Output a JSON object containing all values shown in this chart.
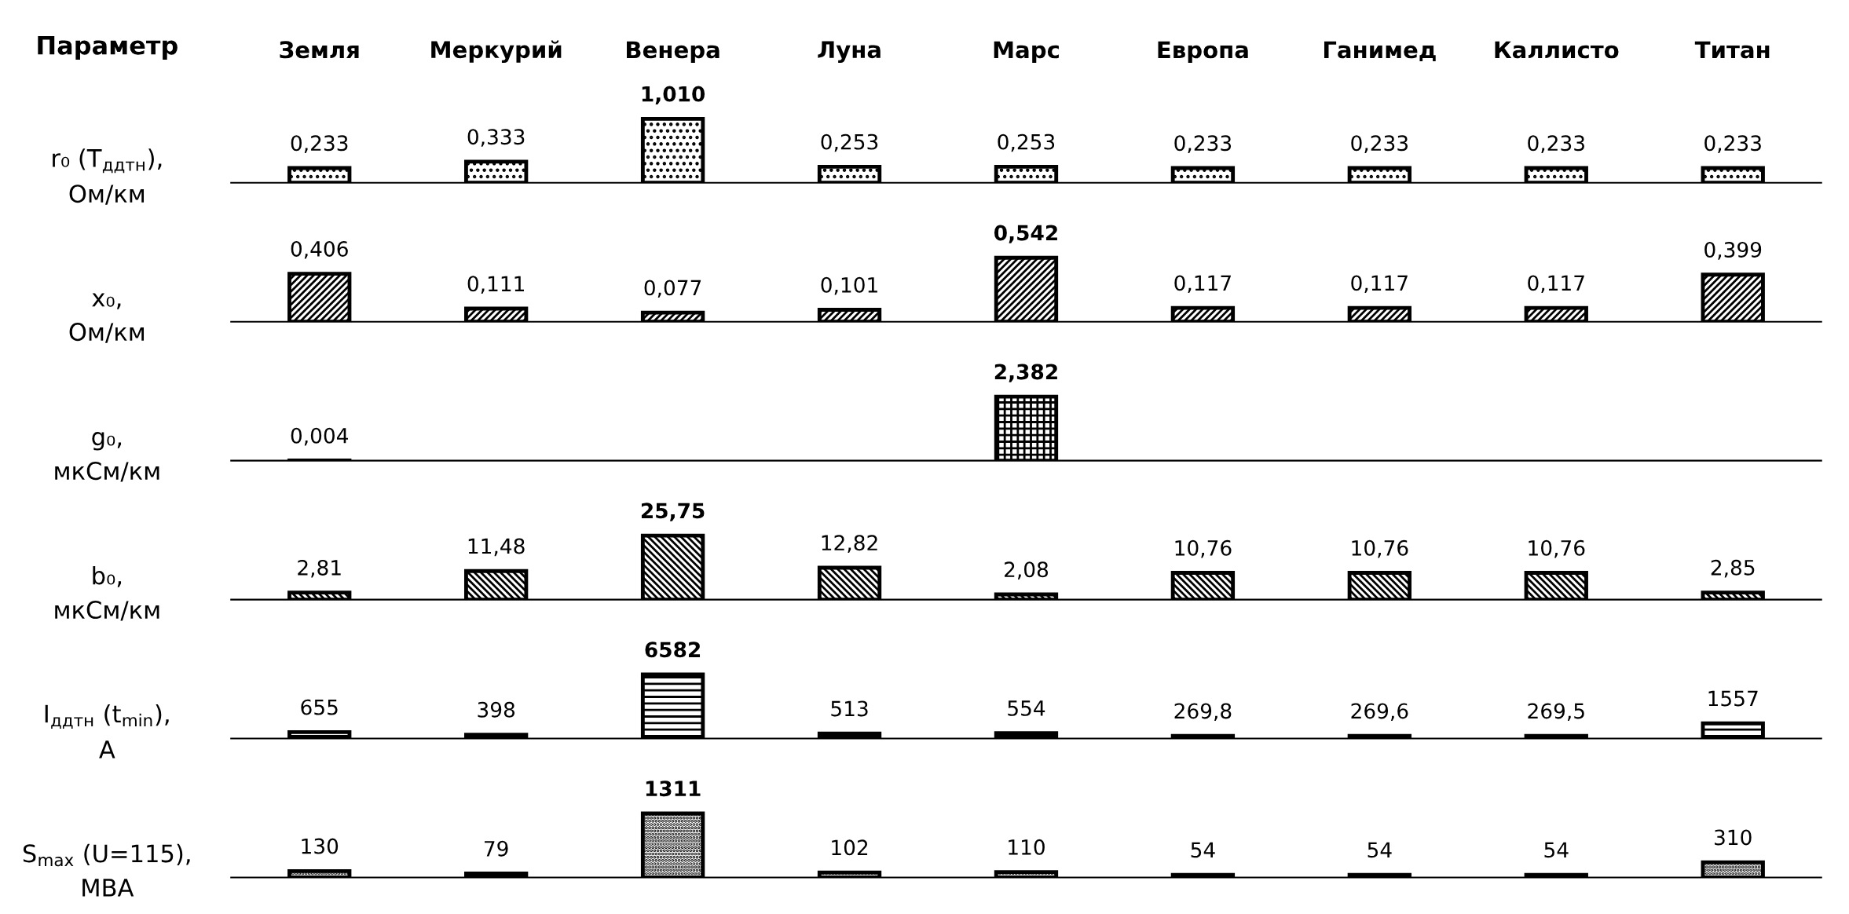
{
  "chart_data": [
    {
      "type": "bar",
      "ylabel": "r₀ (T$_{ддтн}$),\nОм/км",
      "annotations": [
        "Параметр"
      ],
      "tick_labels": "x",
      "categories": [
        "Земля",
        "Меркурий",
        "Венера",
        "Луна",
        "Марс",
        "Европа",
        "Ганимед",
        "Каллисто",
        "Титан"
      ],
      "series": [
        {
          "color": "#000000",
          "values": [
            0.233,
            0.333,
            1.01,
            0.253,
            0.253,
            0.233,
            0.233,
            0.233,
            0.233
          ],
          "value_labels": [
            "0,233",
            "0,333",
            "1,010",
            "0,253",
            "0,253",
            "0,233",
            "0,233",
            "0,233",
            "0,233"
          ]
        }
      ]
    },
    {
      "type": "bar",
      "ylabel": "x₀,\nОм/км",
      "tick_labels": false,
      "categories": [
        null,
        null,
        null,
        null,
        null,
        null,
        null,
        null,
        null
      ],
      "series": [
        {
          "color": "#000000",
          "values": [
            0.406,
            0.111,
            0.077,
            0.101,
            0.542,
            0.117,
            0.117,
            0.117,
            0.399
          ],
          "value_labels": [
            "0,406",
            "0,111",
            "0,077",
            "0,101",
            "0,542",
            "0,117",
            "0,117",
            "0,117",
            "0,399"
          ]
        }
      ]
    },
    {
      "type": "bar",
      "ylabel": "g₀,\nмкСм/км",
      "tick_labels": false,
      "categories": [
        null,
        null,
        null,
        null,
        null,
        null,
        null,
        null,
        null
      ],
      "series": [
        {
          "color": "#000000",
          "values": [
            0.004,
            null,
            null,
            null,
            2.382,
            null,
            null,
            null,
            null
          ],
          "value_labels": [
            "0,004",
            null,
            null,
            null,
            "2,382",
            null,
            null,
            null,
            null
          ]
        }
      ]
    },
    {
      "type": "bar",
      "ylabel": "b₀,\nмкСм/км",
      "tick_labels": false,
      "categories": [
        null,
        null,
        null,
        null,
        null,
        null,
        null,
        null,
        null
      ],
      "series": [
        {
          "color": "#000000",
          "values": [
            2.81,
            11.48,
            25.75,
            12.82,
            2.08,
            10.76,
            10.76,
            10.76,
            2.85
          ],
          "value_labels": [
            "2,81",
            "11,48",
            "25,75",
            "12,82",
            "2,08",
            "10,76",
            "10,76",
            "10,76",
            "2,85"
          ]
        }
      ]
    },
    {
      "type": "bar",
      "ylabel": "I$_{ддтн}$ (t$_{min}$),\nА",
      "tick_labels": false,
      "categories": [
        null,
        null,
        null,
        null,
        null,
        null,
        null,
        null,
        null
      ],
      "series": [
        {
          "color": "#000000",
          "values": [
            655,
            398,
            6582,
            513,
            554,
            269.8,
            269.6,
            269.5,
            1557
          ],
          "value_labels": [
            "655",
            "398",
            "6582",
            "513",
            "554",
            "269,8",
            "269,6",
            "269,5",
            "1557"
          ]
        }
      ]
    },
    {
      "type": "bar",
      "ylabel": "S$_{max}$ (U=115),\nМВА",
      "tick_labels": false,
      "categories": [
        null,
        null,
        null,
        null,
        null,
        null,
        null,
        null,
        null
      ],
      "series": [
        {
          "color": "#000000",
          "values": [
            130,
            79,
            1311,
            102,
            110,
            54,
            54,
            54,
            310
          ],
          "value_labels": [
            "130",
            "79",
            "1311",
            "102",
            "110",
            "54",
            "54",
            "54",
            "310"
          ]
        }
      ]
    }
  ]
}
